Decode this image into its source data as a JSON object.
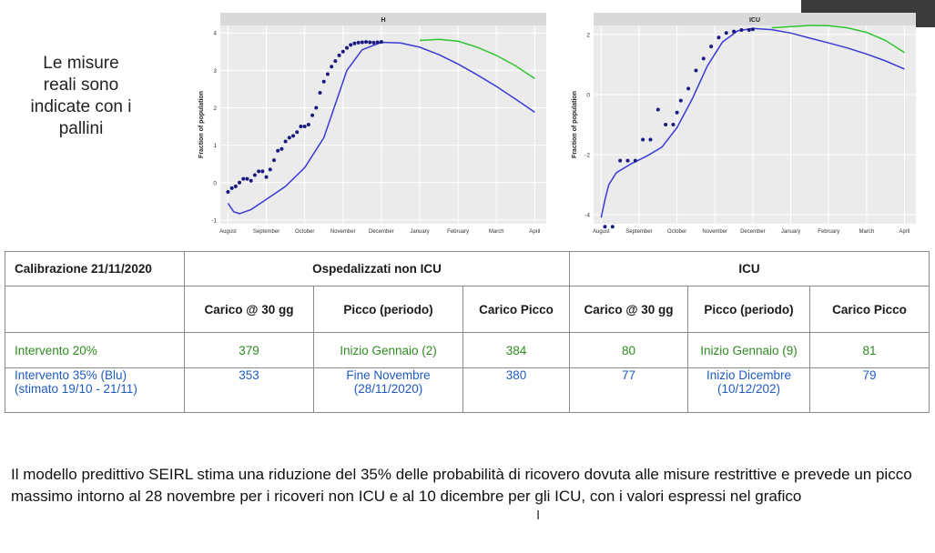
{
  "side_note": "Le misure\nreali sono\nindicate con i\npallini",
  "charts": [
    {
      "title": "H",
      "ylabel": "Fraction of population",
      "y_ticks": [
        "-1",
        "0",
        "1",
        "2",
        "3",
        "4"
      ],
      "x_ticks": [
        "August",
        "September",
        "October",
        "November",
        "December",
        "January",
        "February",
        "March",
        "April"
      ]
    },
    {
      "title": "ICU",
      "ylabel": "Fraction of population",
      "y_ticks": [
        "-4",
        "-2",
        "0",
        "2"
      ],
      "x_ticks": [
        "August",
        "September",
        "October",
        "November",
        "December",
        "January",
        "February",
        "March",
        "April"
      ]
    }
  ],
  "chart_data": [
    {
      "type": "line",
      "title": "H",
      "xlabel": "",
      "ylabel": "Fraction of population",
      "x_unit": "month index (Aug=0 … Apr=8)",
      "xlim": [
        -0.2,
        8.3
      ],
      "ylim": [
        -1.1,
        4.2
      ],
      "series": [
        {
          "color": "#2ec42e",
          "x": [
            5.0,
            5.5,
            6,
            6.5,
            7,
            7.5,
            8.0
          ],
          "y": [
            3.8,
            3.83,
            3.78,
            3.62,
            3.4,
            3.12,
            2.78
          ]
        },
        {
          "color": "#3a3ad6",
          "x": [
            0.0,
            0.15,
            0.3,
            0.6,
            1.0,
            1.5,
            2.0,
            2.5,
            2.8,
            3.1,
            3.5,
            4.0,
            4.5,
            5.0,
            5.5,
            6,
            6.5,
            7,
            7.5,
            8.0
          ],
          "y": [
            -0.55,
            -0.78,
            -0.83,
            -0.72,
            -0.45,
            -0.1,
            0.4,
            1.2,
            2.1,
            3.0,
            3.55,
            3.75,
            3.73,
            3.62,
            3.42,
            3.17,
            2.88,
            2.57,
            2.23,
            1.88
          ]
        }
      ],
      "points": {
        "color": "#1a1a80",
        "x": [
          0.0,
          0.1,
          0.2,
          0.3,
          0.4,
          0.5,
          0.6,
          0.7,
          0.8,
          0.9,
          1.0,
          1.1,
          1.2,
          1.3,
          1.4,
          1.5,
          1.6,
          1.7,
          1.8,
          1.9,
          2.0,
          2.1,
          2.2,
          2.3,
          2.4,
          2.5,
          2.6,
          2.7,
          2.8,
          2.9,
          3.0,
          3.1,
          3.2,
          3.3,
          3.4,
          3.5,
          3.6,
          3.7,
          3.8,
          3.9,
          4.0
        ],
        "y": [
          -0.25,
          -0.15,
          -0.1,
          0.0,
          0.1,
          0.1,
          0.05,
          0.2,
          0.3,
          0.3,
          0.15,
          0.35,
          0.6,
          0.85,
          0.9,
          1.1,
          1.2,
          1.25,
          1.35,
          1.5,
          1.5,
          1.55,
          1.8,
          2.0,
          2.4,
          2.7,
          2.9,
          3.1,
          3.25,
          3.4,
          3.5,
          3.6,
          3.68,
          3.72,
          3.74,
          3.75,
          3.76,
          3.75,
          3.74,
          3.75,
          3.76
        ]
      }
    },
    {
      "type": "line",
      "title": "ICU",
      "xlabel": "",
      "ylabel": "Fraction of population",
      "x_unit": "month index (Aug=0 … Apr=8)",
      "xlim": [
        -0.2,
        8.3
      ],
      "ylim": [
        -4.3,
        2.3
      ],
      "series": [
        {
          "color": "#2ec42e",
          "x": [
            4.5,
            5,
            5.5,
            6,
            6.5,
            7,
            7.5,
            8.0
          ],
          "y": [
            2.22,
            2.26,
            2.3,
            2.29,
            2.22,
            2.07,
            1.8,
            1.4
          ]
        },
        {
          "color": "#3a3ad6",
          "x": [
            0.0,
            0.1,
            0.2,
            0.4,
            0.8,
            1.2,
            1.6,
            2.0,
            2.4,
            2.8,
            3.2,
            3.6,
            4.0,
            4.5,
            5.0,
            5.5,
            6,
            6.5,
            7,
            7.5,
            8.0
          ],
          "y": [
            -4.1,
            -3.5,
            -3.0,
            -2.6,
            -2.3,
            -2.05,
            -1.75,
            -1.1,
            -0.15,
            0.95,
            1.75,
            2.12,
            2.2,
            2.16,
            2.05,
            1.88,
            1.72,
            1.55,
            1.35,
            1.12,
            0.85
          ]
        }
      ],
      "points": {
        "color": "#1a1a80",
        "x": [
          0.1,
          0.3,
          0.5,
          0.7,
          0.9,
          1.1,
          1.3,
          1.5,
          1.7,
          1.9,
          2.0,
          2.1,
          2.3,
          2.5,
          2.7,
          2.9,
          3.1,
          3.3,
          3.5,
          3.7,
          3.9,
          4.0
        ],
        "y": [
          -4.4,
          -4.4,
          -2.2,
          -2.2,
          -2.2,
          -1.5,
          -1.5,
          -0.5,
          -1.0,
          -1.0,
          -0.6,
          -0.2,
          0.2,
          0.8,
          1.2,
          1.6,
          1.9,
          2.05,
          2.1,
          2.15,
          2.15,
          2.17
        ]
      }
    }
  ],
  "table": {
    "calibration": "Calibrazione 21/11/2020",
    "group_h": "Ospedalizzati non ICU",
    "group_icu": "ICU",
    "col_load30": "Carico @ 30 gg",
    "col_peak_period": "Picco (periodo)",
    "col_peak_load": "Carico Picco",
    "rows": [
      {
        "label": "Intervento  20%",
        "h_load30": "379",
        "h_peak_period": "Inizio Gennaio (2)",
        "h_peak_load": "384",
        "icu_load30": "80",
        "icu_peak_period": "Inizio Gennaio (9)",
        "icu_peak_load": "81"
      },
      {
        "label": "Intervento 35%  (Blu)\n(stimato 19/10 - 21/11)",
        "h_load30": "353",
        "h_peak_period": "Fine Novembre\n(28/11/2020)",
        "h_peak_load": "380",
        "icu_load30": "77",
        "icu_peak_period": "Inizio Dicembre\n(10/12/202)",
        "icu_peak_load": "79"
      }
    ],
    "colors": {
      "green": "#2e8b20",
      "blue": "#1f5bbf"
    }
  },
  "bottom_text": "Il modello predittivo SEIRL stima una riduzione del 35% delle probabilità di ricovero dovuta alle misure restrittive e prevede un picco massimo intorno al 28 novembre per i ricoveri non ICU e al 10 dicembre per gli ICU, con i valori espressi nel grafico"
}
